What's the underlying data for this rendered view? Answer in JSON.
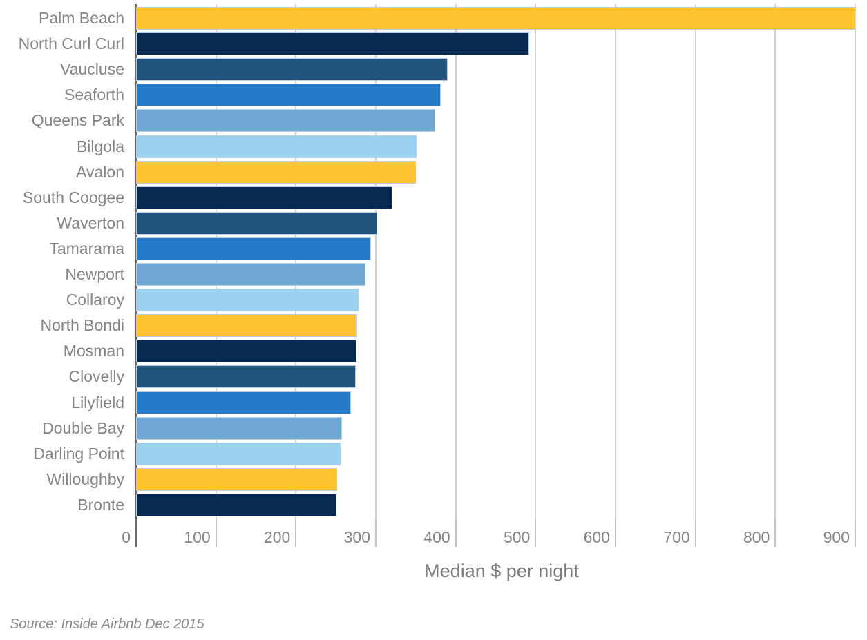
{
  "chart_data": {
    "type": "bar",
    "orientation": "horizontal",
    "title": "",
    "xlabel": "Median $ per night",
    "ylabel": "",
    "xlim": [
      0,
      900
    ],
    "xticks": [
      0,
      100,
      200,
      300,
      400,
      500,
      600,
      700,
      800,
      900
    ],
    "grid": "vertical",
    "legend": "none",
    "categories": [
      "Palm Beach",
      "North Curl Curl",
      "Vaucluse",
      "Seaforth",
      "Queens Park",
      "Bilgola",
      "Avalon",
      "South Coogee",
      "Waverton",
      "Tamarama",
      "Newport",
      "Collaroy",
      "North Bondi",
      "Mosman",
      "Clovelly",
      "Lilyfield",
      "Double Bay",
      "Darling Point",
      "Willoughby",
      "Bronte"
    ],
    "values": [
      900,
      492,
      390,
      381,
      374,
      351,
      350,
      321,
      302,
      294,
      287,
      278,
      277,
      276,
      275,
      269,
      258,
      256,
      252,
      251
    ],
    "palette": [
      "#FDC431",
      "#082A50",
      "#20547F",
      "#237BC8",
      "#6EA8D2",
      "#9AD2F0"
    ],
    "source_note": "Source: Inside Airbnb Dec 2015"
  },
  "footer": {
    "source": "Source: Inside Airbnb Dec 2015"
  },
  "colors": {
    "background": "#FFFFFF",
    "gridline": "#D2D2D2",
    "axis_line": "#6A6A6A",
    "tick_mark": "#C2C2C2",
    "label_text": "#848484",
    "axis_title_text": "#7C7C7C",
    "source_text": "#8A8A8A",
    "bar_outline": "#B9CBDE"
  }
}
